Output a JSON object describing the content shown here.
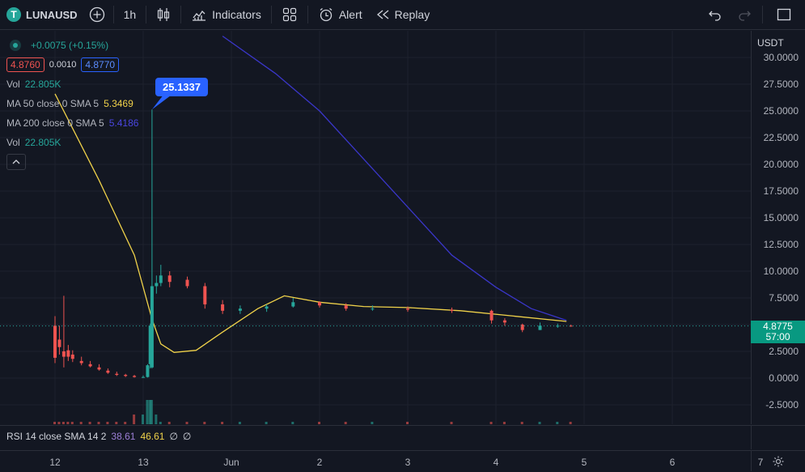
{
  "toolbar": {
    "symbol": "LUNAUSD",
    "symbol_logo": "T",
    "interval": "1h",
    "indicators_label": "Indicators",
    "alert_label": "Alert",
    "replay_label": "Replay"
  },
  "legend": {
    "change": "+0.0075 (+0.15%)",
    "bid": "4.8760",
    "spread": "0.0010",
    "ask": "4.8770",
    "vol_label": "Vol",
    "vol_value": "22.805K",
    "ma50_label": "MA 50 close 0 SMA 5",
    "ma50_value": "5.3469",
    "ma200_label": "MA 200 close 0 SMA 5",
    "ma200_value": "5.4186",
    "vol2_label": "Vol",
    "vol2_value": "22.805K"
  },
  "high_callout": "25.1337",
  "price_axis": {
    "currency": "USDT",
    "ticks": [
      "30.0000",
      "27.5000",
      "25.0000",
      "22.5000",
      "20.0000",
      "17.5000",
      "15.0000",
      "12.5000",
      "10.0000",
      "7.5000",
      "5.0000",
      "2.5000",
      "0.0000",
      "-2.5000"
    ]
  },
  "last_price": {
    "price": "4.8775",
    "countdown": "57:00"
  },
  "time_axis": [
    "12",
    "13",
    "Jun",
    "2",
    "3",
    "4",
    "5",
    "6",
    "7"
  ],
  "rsi": {
    "label": "RSI 14 close SMA 14 2",
    "value1": "38.61",
    "value2": "46.61",
    "na1": "∅",
    "na2": "∅"
  },
  "colors": {
    "background": "#131722",
    "up": "#26a69a",
    "down": "#ef5350",
    "ma50": "#f0d24a",
    "ma200": "#3a36c9",
    "accent": "#2962ff"
  },
  "chart_data": {
    "type": "candlestick",
    "symbol": "LUNAUSD",
    "interval": "1h",
    "ylim": [
      -3.5,
      31
    ],
    "x_ticks": [
      "12",
      "13",
      "Jun",
      "2",
      "3",
      "4",
      "5",
      "6",
      "7"
    ],
    "y_ticks": [
      30,
      27.5,
      25,
      22.5,
      20,
      17.5,
      15,
      12.5,
      10,
      7.5,
      5,
      2.5,
      0,
      -2.5
    ],
    "high": 25.1337,
    "last": 4.8775,
    "series": [
      {
        "name": "MA 50 close 0 SMA 5",
        "color": "#f0d24a",
        "points": [
          [
            0.0,
            26.6
          ],
          [
            0.5,
            18.5
          ],
          [
            0.9,
            11.5
          ],
          [
            1.1,
            5.5
          ],
          [
            1.2,
            3.2
          ],
          [
            1.35,
            2.4
          ],
          [
            1.6,
            2.6
          ],
          [
            1.9,
            4.3
          ],
          [
            2.3,
            6.5
          ],
          [
            2.6,
            7.7
          ],
          [
            3.0,
            7.1
          ],
          [
            3.5,
            6.7
          ],
          [
            4.0,
            6.6
          ],
          [
            4.6,
            6.3
          ],
          [
            5.2,
            5.8
          ],
          [
            5.8,
            5.3
          ]
        ]
      },
      {
        "name": "MA 200 close 0 SMA 5",
        "color": "#3a36c9",
        "points": [
          [
            1.9,
            32
          ],
          [
            2.5,
            28.5
          ],
          [
            3.0,
            25.0
          ],
          [
            3.5,
            20.5
          ],
          [
            4.0,
            16.0
          ],
          [
            4.5,
            11.5
          ],
          [
            5.0,
            8.5
          ],
          [
            5.4,
            6.5
          ],
          [
            5.8,
            5.4
          ]
        ]
      }
    ],
    "candles": [
      {
        "x": 0.0,
        "o": 4.9,
        "h": 5.8,
        "l": 1.4,
        "c": 1.9
      },
      {
        "x": 0.05,
        "o": 3.6,
        "h": 4.9,
        "l": 2.2,
        "c": 2.9
      },
      {
        "x": 0.1,
        "o": 2.5,
        "h": 7.7,
        "l": 1.0,
        "c": 2.0
      },
      {
        "x": 0.15,
        "o": 2.6,
        "h": 3.1,
        "l": 1.6,
        "c": 2.0
      },
      {
        "x": 0.2,
        "o": 2.2,
        "h": 2.6,
        "l": 1.5,
        "c": 1.8
      },
      {
        "x": 0.3,
        "o": 1.6,
        "h": 2.0,
        "l": 1.2,
        "c": 1.4
      },
      {
        "x": 0.4,
        "o": 1.3,
        "h": 1.6,
        "l": 1.0,
        "c": 1.1
      },
      {
        "x": 0.5,
        "o": 1.0,
        "h": 1.3,
        "l": 0.7,
        "c": 0.8
      },
      {
        "x": 0.6,
        "o": 0.7,
        "h": 0.9,
        "l": 0.4,
        "c": 0.5
      },
      {
        "x": 0.7,
        "o": 0.4,
        "h": 0.6,
        "l": 0.2,
        "c": 0.3
      },
      {
        "x": 0.8,
        "o": 0.3,
        "h": 0.4,
        "l": 0.1,
        "c": 0.2
      },
      {
        "x": 0.9,
        "o": 0.2,
        "h": 0.3,
        "l": 0.05,
        "c": 0.1
      },
      {
        "x": 1.0,
        "o": 0.1,
        "h": 0.25,
        "l": 0.02,
        "c": 0.1
      },
      {
        "x": 1.05,
        "o": 0.1,
        "h": 1.3,
        "l": 0.05,
        "c": 1.2
      },
      {
        "x": 1.08,
        "o": 1.3,
        "h": 5.1,
        "l": 0.9,
        "c": 4.9
      },
      {
        "x": 1.1,
        "o": 1.0,
        "h": 25.13,
        "l": 0.9,
        "c": 8.6
      },
      {
        "x": 1.15,
        "o": 8.6,
        "h": 9.6,
        "l": 7.9,
        "c": 8.9
      },
      {
        "x": 1.2,
        "o": 8.9,
        "h": 10.6,
        "l": 8.6,
        "c": 9.6
      },
      {
        "x": 1.3,
        "o": 9.6,
        "h": 10.0,
        "l": 8.5,
        "c": 9.0
      },
      {
        "x": 1.5,
        "o": 9.2,
        "h": 9.5,
        "l": 8.4,
        "c": 8.6
      },
      {
        "x": 1.7,
        "o": 8.6,
        "h": 8.9,
        "l": 6.5,
        "c": 6.9
      },
      {
        "x": 1.9,
        "o": 6.9,
        "h": 7.3,
        "l": 6.0,
        "c": 6.3
      },
      {
        "x": 2.1,
        "o": 6.3,
        "h": 6.8,
        "l": 6.0,
        "c": 6.5
      },
      {
        "x": 2.4,
        "o": 6.5,
        "h": 6.9,
        "l": 6.2,
        "c": 6.7
      },
      {
        "x": 2.7,
        "o": 6.7,
        "h": 7.5,
        "l": 6.6,
        "c": 7.1
      },
      {
        "x": 3.0,
        "o": 7.1,
        "h": 7.2,
        "l": 6.6,
        "c": 6.8
      },
      {
        "x": 3.3,
        "o": 6.8,
        "h": 7.0,
        "l": 6.3,
        "c": 6.5
      },
      {
        "x": 3.6,
        "o": 6.5,
        "h": 6.8,
        "l": 6.3,
        "c": 6.5
      },
      {
        "x": 4.0,
        "o": 6.5,
        "h": 6.7,
        "l": 6.2,
        "c": 6.4
      },
      {
        "x": 4.5,
        "o": 6.4,
        "h": 6.6,
        "l": 6.1,
        "c": 6.3
      },
      {
        "x": 4.95,
        "o": 6.3,
        "h": 6.4,
        "l": 5.1,
        "c": 5.4
      },
      {
        "x": 5.1,
        "o": 5.4,
        "h": 5.6,
        "l": 4.9,
        "c": 5.2
      },
      {
        "x": 5.3,
        "o": 5.0,
        "h": 5.1,
        "l": 4.3,
        "c": 4.5
      },
      {
        "x": 5.5,
        "o": 4.5,
        "h": 5.2,
        "l": 4.5,
        "c": 4.9
      },
      {
        "x": 5.7,
        "o": 4.9,
        "h": 5.1,
        "l": 4.7,
        "c": 4.9
      },
      {
        "x": 5.85,
        "o": 4.9,
        "h": 5.0,
        "l": 4.8,
        "c": 4.88
      }
    ]
  }
}
